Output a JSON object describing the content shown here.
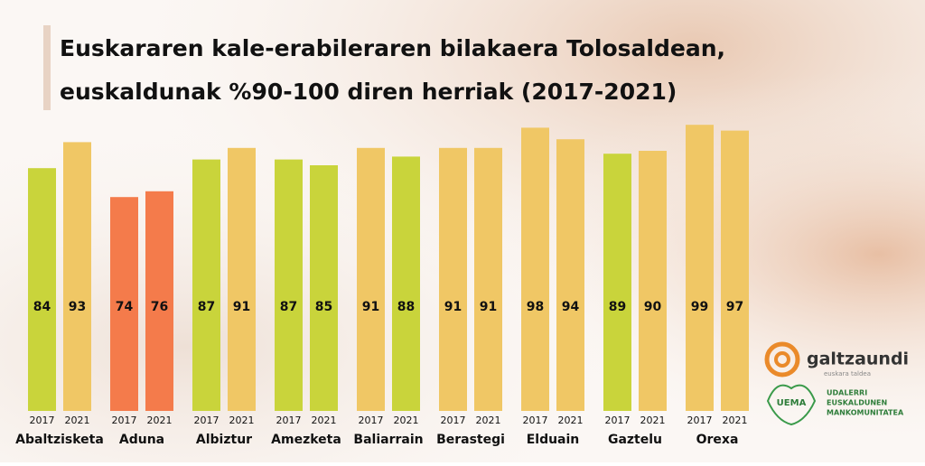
{
  "chart_data": {
    "type": "bar",
    "title": [
      "Euskararen kale-erabileraren bilakaera Tolosaldean,",
      "euskaldunak %90-100 diren herriak (2017-2021)"
    ],
    "categories": [
      "Abaltzisketa",
      "Aduna",
      "Albiztur",
      "Amezketa",
      "Baliarrain",
      "Berastegi",
      "Elduain",
      "Gaztelu",
      "Orexa"
    ],
    "series": [
      {
        "name": "2017",
        "values": [
          84,
          74,
          87,
          87,
          91,
          91,
          98,
          89,
          99
        ],
        "colors": [
          "#c9d43b",
          "#f47b4b",
          "#c9d43b",
          "#c9d43b",
          "#f0c765",
          "#f0c765",
          "#f0c765",
          "#c9d43b",
          "#f0c765"
        ]
      },
      {
        "name": "2021",
        "values": [
          93,
          76,
          91,
          85,
          88,
          91,
          94,
          90,
          97
        ],
        "colors": [
          "#f0c765",
          "#f47b4b",
          "#f0c765",
          "#c9d43b",
          "#c9d43b",
          "#f0c765",
          "#f0c765",
          "#f0c765",
          "#f0c765"
        ]
      }
    ],
    "ylim": [
      0,
      100
    ]
  },
  "logos": {
    "galtzaundi": "galtzaundi",
    "galtzaundi_sub": "euskara taldea",
    "uema": "UEMA",
    "uema_text": [
      "UDALERRI",
      "EUSKALDUNEN",
      "MANKOMUNITATEA"
    ]
  }
}
